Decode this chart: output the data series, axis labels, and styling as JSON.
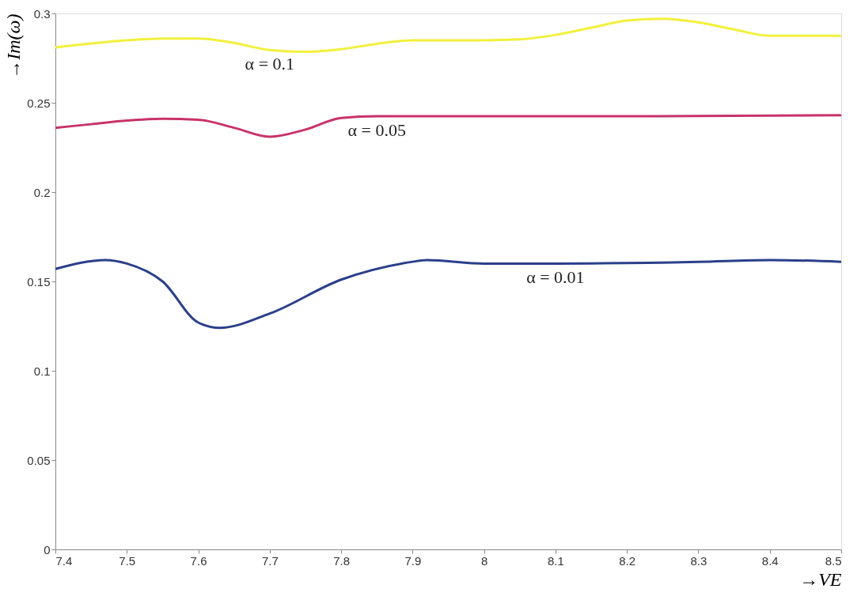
{
  "chart_data": {
    "type": "line",
    "xlabel": "→VE",
    "ylabel": "→Im(ω)",
    "xlim": [
      7.4,
      8.5
    ],
    "xticks": [
      7.4,
      7.5,
      7.6,
      7.7,
      7.8,
      7.9,
      8,
      8.1,
      8.2,
      8.3,
      8.4,
      8.5
    ],
    "ylim": [
      0,
      0.3
    ],
    "yticks": [
      0,
      0.05,
      0.1,
      0.15,
      0.2,
      0.25,
      0.3
    ],
    "grid": false,
    "legend": false,
    "marker": "none",
    "line_style": "solid",
    "series": [
      {
        "name": "α = 0.1",
        "color": "#f2f03c",
        "x": [
          7.4,
          7.5,
          7.55,
          7.6,
          7.65,
          7.7,
          7.75,
          7.8,
          7.85,
          7.9,
          8.0,
          8.05,
          8.1,
          8.15,
          8.2,
          8.25,
          8.3,
          8.35,
          8.4,
          8.5
        ],
        "values": [
          0.281,
          0.285,
          0.286,
          0.286,
          0.2835,
          0.2795,
          0.2785,
          0.28,
          0.283,
          0.285,
          0.285,
          0.2855,
          0.288,
          0.292,
          0.296,
          0.297,
          0.295,
          0.291,
          0.2875,
          0.2875
        ]
      },
      {
        "name": "α = 0.05",
        "color": "#c8336a",
        "x": [
          7.4,
          7.45,
          7.5,
          7.55,
          7.6,
          7.65,
          7.7,
          7.75,
          7.8,
          7.85,
          8.0,
          8.2,
          8.5
        ],
        "values": [
          0.236,
          0.238,
          0.24,
          0.241,
          0.2405,
          0.236,
          0.231,
          0.235,
          0.2415,
          0.2425,
          0.2425,
          0.2425,
          0.243
        ]
      },
      {
        "name": "α = 0.01",
        "color": "#2b3f8a",
        "x": [
          7.4,
          7.47,
          7.5,
          7.55,
          7.6,
          7.63,
          7.7,
          7.8,
          7.9,
          7.92,
          8.0,
          8.1,
          8.3,
          8.4,
          8.5
        ],
        "values": [
          0.157,
          0.162,
          0.16,
          0.15,
          0.127,
          0.124,
          0.132,
          0.151,
          0.161,
          0.162,
          0.16,
          0.16,
          0.161,
          0.162,
          0.161
        ]
      }
    ]
  }
}
